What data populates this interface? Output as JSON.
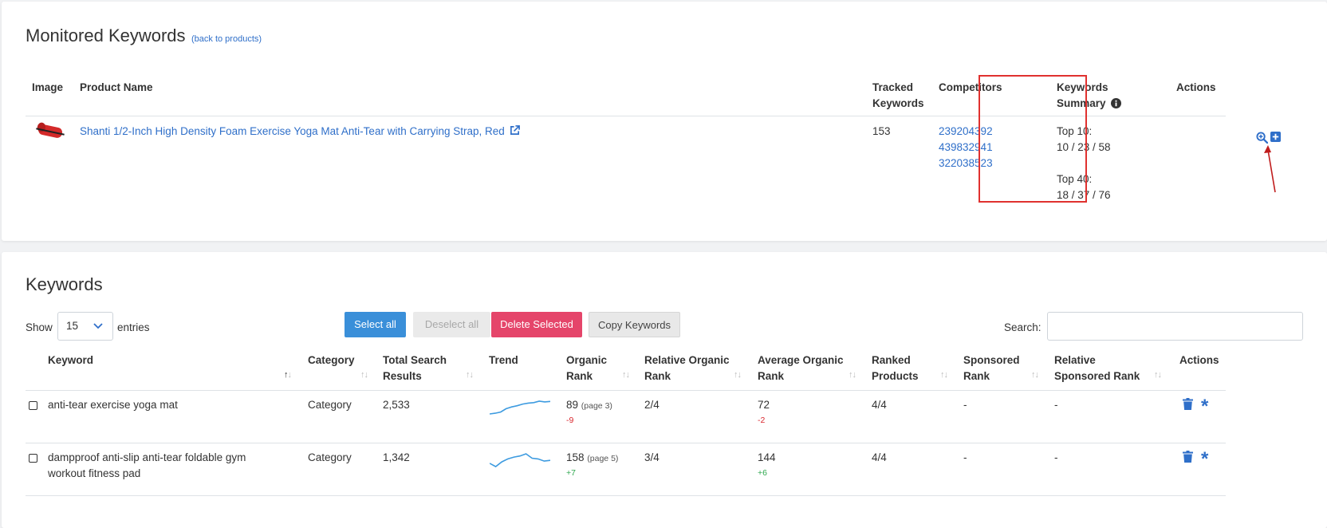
{
  "monitored": {
    "title": "Monitored Keywords",
    "back_link": "(back to products)",
    "headers": {
      "image": "Image",
      "product_name": "Product Name",
      "tracked_keywords_1": "Tracked",
      "tracked_keywords_2": "Keywords",
      "competitors": "Competitors",
      "keywords_summary_1": "Keywords",
      "keywords_summary_2": "Summary",
      "actions": "Actions"
    },
    "product": {
      "name": "Shanti 1/2-Inch High Density Foam Exercise Yoga Mat Anti-Tear with Carrying Strap, Red",
      "tracked_keywords": "153",
      "competitors": [
        "239204392",
        "439832941",
        "322038523"
      ],
      "summary_top10_label": "Top 10:",
      "summary_top10_value": "10 / 23 / 58",
      "summary_top40_label": "Top 40:",
      "summary_top40_value": "18 / 37 / 76"
    }
  },
  "keywords": {
    "title": "Keywords",
    "show_label": "Show",
    "entries_value": "15",
    "entries_label": "entries",
    "buttons": {
      "select_all": "Select all",
      "deselect_all": "Deselect all",
      "delete_selected": "Delete Selected",
      "copy_keywords": "Copy Keywords"
    },
    "search_label": "Search:",
    "search_value": "",
    "headers": {
      "keyword": "Keyword",
      "category": "Category",
      "total_search_1": "Total Search",
      "total_search_2": "Results",
      "trend": "Trend",
      "organic_1": "Organic",
      "organic_2": "Rank",
      "rel_organic_1": "Relative Organic",
      "rel_organic_2": "Rank",
      "avg_organic_1": "Average Organic",
      "avg_organic_2": "Rank",
      "ranked_1": "Ranked",
      "ranked_2": "Products",
      "sponsored_1": "Sponsored",
      "sponsored_2": "Rank",
      "rel_sponsored_1": "Relative",
      "rel_sponsored_2": "Sponsored Rank",
      "actions": "Actions"
    },
    "rows": [
      {
        "keyword_1": "anti-tear exercise yoga mat",
        "keyword_2": "",
        "category": "Category",
        "total_search": "2,533",
        "trend": [
          6,
          6.3,
          6.8,
          8.2,
          8.9,
          9.4,
          10.1,
          10.5,
          10.7,
          11.3,
          11.0,
          11.2
        ],
        "organic_rank": "89",
        "organic_page": "(page 3)",
        "organic_delta": "-9",
        "relative_organic": "2/4",
        "avg_organic": "72",
        "avg_delta": "-2",
        "ranked_products": "4/4",
        "sponsored_rank": "-",
        "relative_sponsored": "-"
      },
      {
        "keyword_1": "dampproof anti-slip anti-tear foldable gym",
        "keyword_2": "workout fitness pad",
        "category": "Category",
        "total_search": "1,342",
        "trend": [
          6.2,
          5.3,
          6.6,
          7.4,
          7.9,
          8.2,
          8.8,
          7.6,
          7.4,
          6.8,
          7.0
        ],
        "organic_rank": "158",
        "organic_page": "(page 5)",
        "organic_delta": "+7",
        "relative_organic": "3/4",
        "avg_organic": "144",
        "avg_delta": "+6",
        "ranked_products": "4/4",
        "sponsored_rank": "-",
        "relative_sponsored": "-"
      }
    ]
  },
  "colors": {
    "link": "#2f6fc9",
    "annotation_red": "#e0312f",
    "select_all_btn": "#3a8fd9",
    "delete_btn": "#e5456a",
    "trend_line": "#3d9be0"
  }
}
